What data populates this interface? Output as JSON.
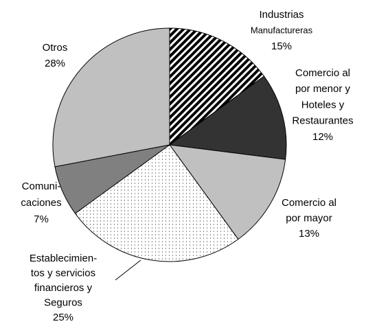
{
  "chart_data": {
    "type": "pie",
    "categories": [
      [
        "Industrias",
        "Manufactureras"
      ],
      [
        "Comercio al",
        "por menor y",
        "Hoteles y",
        "Restaurantes"
      ],
      [
        "Comercio al",
        "por mayor"
      ],
      [
        "Establecimien-",
        "tos y servicios",
        "financieros y",
        "Seguros"
      ],
      [
        "Comuni-",
        "caciones"
      ],
      [
        "Otros"
      ]
    ],
    "values": [
      15,
      12,
      13,
      25,
      7,
      28
    ],
    "value_labels": [
      "15%",
      "12%",
      "13%",
      "25%",
      "7%",
      "28%"
    ],
    "colors": [
      "#ffffff",
      "#333333",
      "#c0c0c0",
      "#ffffff",
      "#808080",
      "#c0c0c0"
    ],
    "patterns": [
      "diagonal",
      null,
      null,
      "dots",
      null,
      null
    ]
  }
}
